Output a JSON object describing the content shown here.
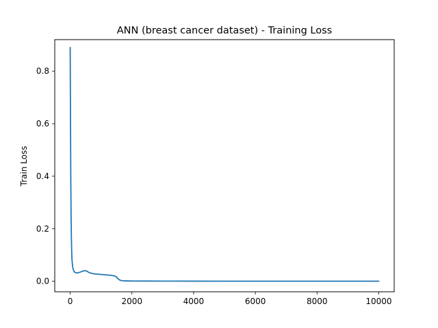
{
  "chart_data": {
    "type": "line",
    "title": "ANN (breast cancer dataset) - Training Loss",
    "xlabel": "",
    "ylabel": "Train Loss",
    "xlim": [
      -500,
      10500
    ],
    "ylim": [
      -0.04,
      0.92
    ],
    "xticks": [
      0,
      2000,
      4000,
      6000,
      8000,
      10000
    ],
    "xtick_labels": [
      "0",
      "2000",
      "4000",
      "6000",
      "8000",
      "10000"
    ],
    "yticks": [
      0.0,
      0.2,
      0.4,
      0.6,
      0.8
    ],
    "ytick_labels": [
      "0.0",
      "0.2",
      "0.4",
      "0.6",
      "0.8"
    ],
    "grid": false,
    "line_color": "#1f77b4",
    "series": [
      {
        "x": [
          0,
          10,
          20,
          30,
          40,
          50,
          60,
          80,
          100,
          120,
          150,
          200,
          250,
          300,
          350,
          400,
          450,
          500,
          550,
          600,
          700,
          800,
          900,
          1000,
          1100,
          1200,
          1300,
          1400,
          1450,
          1500,
          1550,
          1600,
          1650,
          1700,
          1800,
          2000,
          2500,
          3000,
          4000,
          5000,
          6000,
          7000,
          8000,
          9000,
          10000
        ],
        "y": [
          0.89,
          0.62,
          0.38,
          0.24,
          0.16,
          0.11,
          0.08,
          0.055,
          0.045,
          0.039,
          0.034,
          0.032,
          0.032,
          0.034,
          0.036,
          0.038,
          0.04,
          0.04,
          0.038,
          0.034,
          0.03,
          0.028,
          0.027,
          0.026,
          0.025,
          0.024,
          0.023,
          0.021,
          0.02,
          0.016,
          0.01,
          0.005,
          0.003,
          0.002,
          0.0015,
          0.001,
          0.0008,
          0.0006,
          0.0005,
          0.0004,
          0.0004,
          0.0003,
          0.0003,
          0.0003,
          0.0003
        ]
      }
    ]
  }
}
